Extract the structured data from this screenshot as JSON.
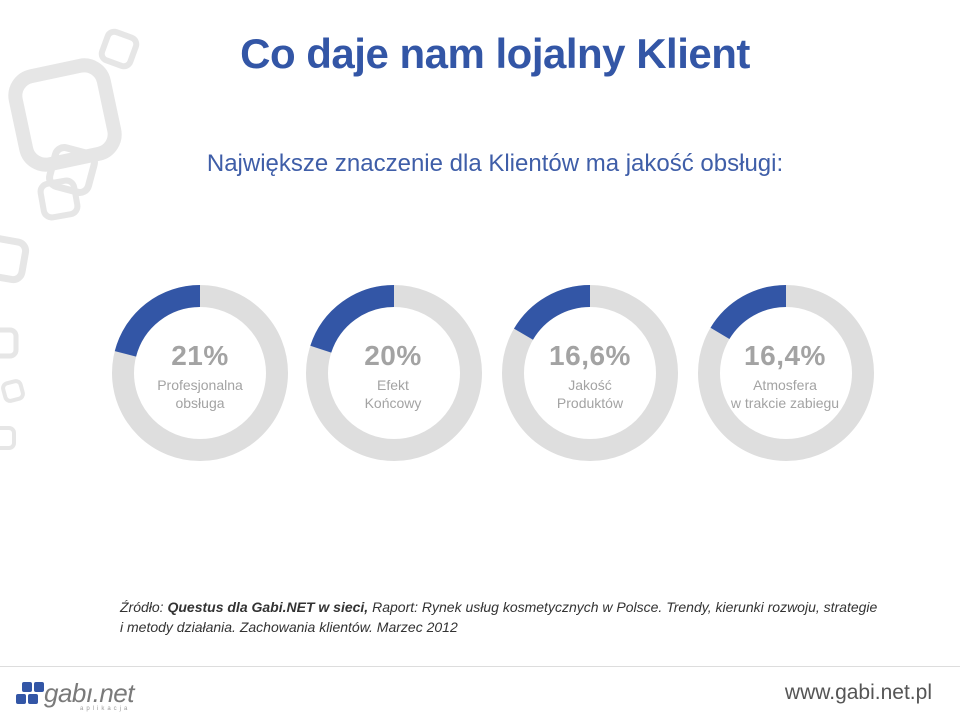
{
  "title": "Co daje nam lojalny Klient",
  "subtitle": "Największe znaczenie dla Klientów ma jakość obsługi:",
  "colors": {
    "accent": "#3356a6",
    "track": "#dedede",
    "label": "#a3a3a3"
  },
  "donuts": [
    {
      "value_text": "21%",
      "fraction": 0.21,
      "line1": "Profesjonalna",
      "line2": "obsługa"
    },
    {
      "value_text": "20%",
      "fraction": 0.2,
      "line1": "Efekt",
      "line2": "Końcowy"
    },
    {
      "value_text": "16,6%",
      "fraction": 0.166,
      "line1": "Jakość",
      "line2": "Produktów"
    },
    {
      "value_text": "16,4%",
      "fraction": 0.164,
      "line1": "Atmosfera",
      "line2": "w trakcie zabiegu"
    }
  ],
  "source": {
    "prefix": "Źródło: ",
    "bold": "Questus dla Gabi.NET w sieci, ",
    "rest": "Raport: Rynek usług kosmetycznych w Polsce. Trendy, kierunki rozwoju, strategie i metody działania. Zachowania klientów. Marzec 2012"
  },
  "footer": {
    "logo_text": "gabı.net",
    "logo_sub": "aplikacja",
    "website": "www.gabi.net.pl"
  }
}
